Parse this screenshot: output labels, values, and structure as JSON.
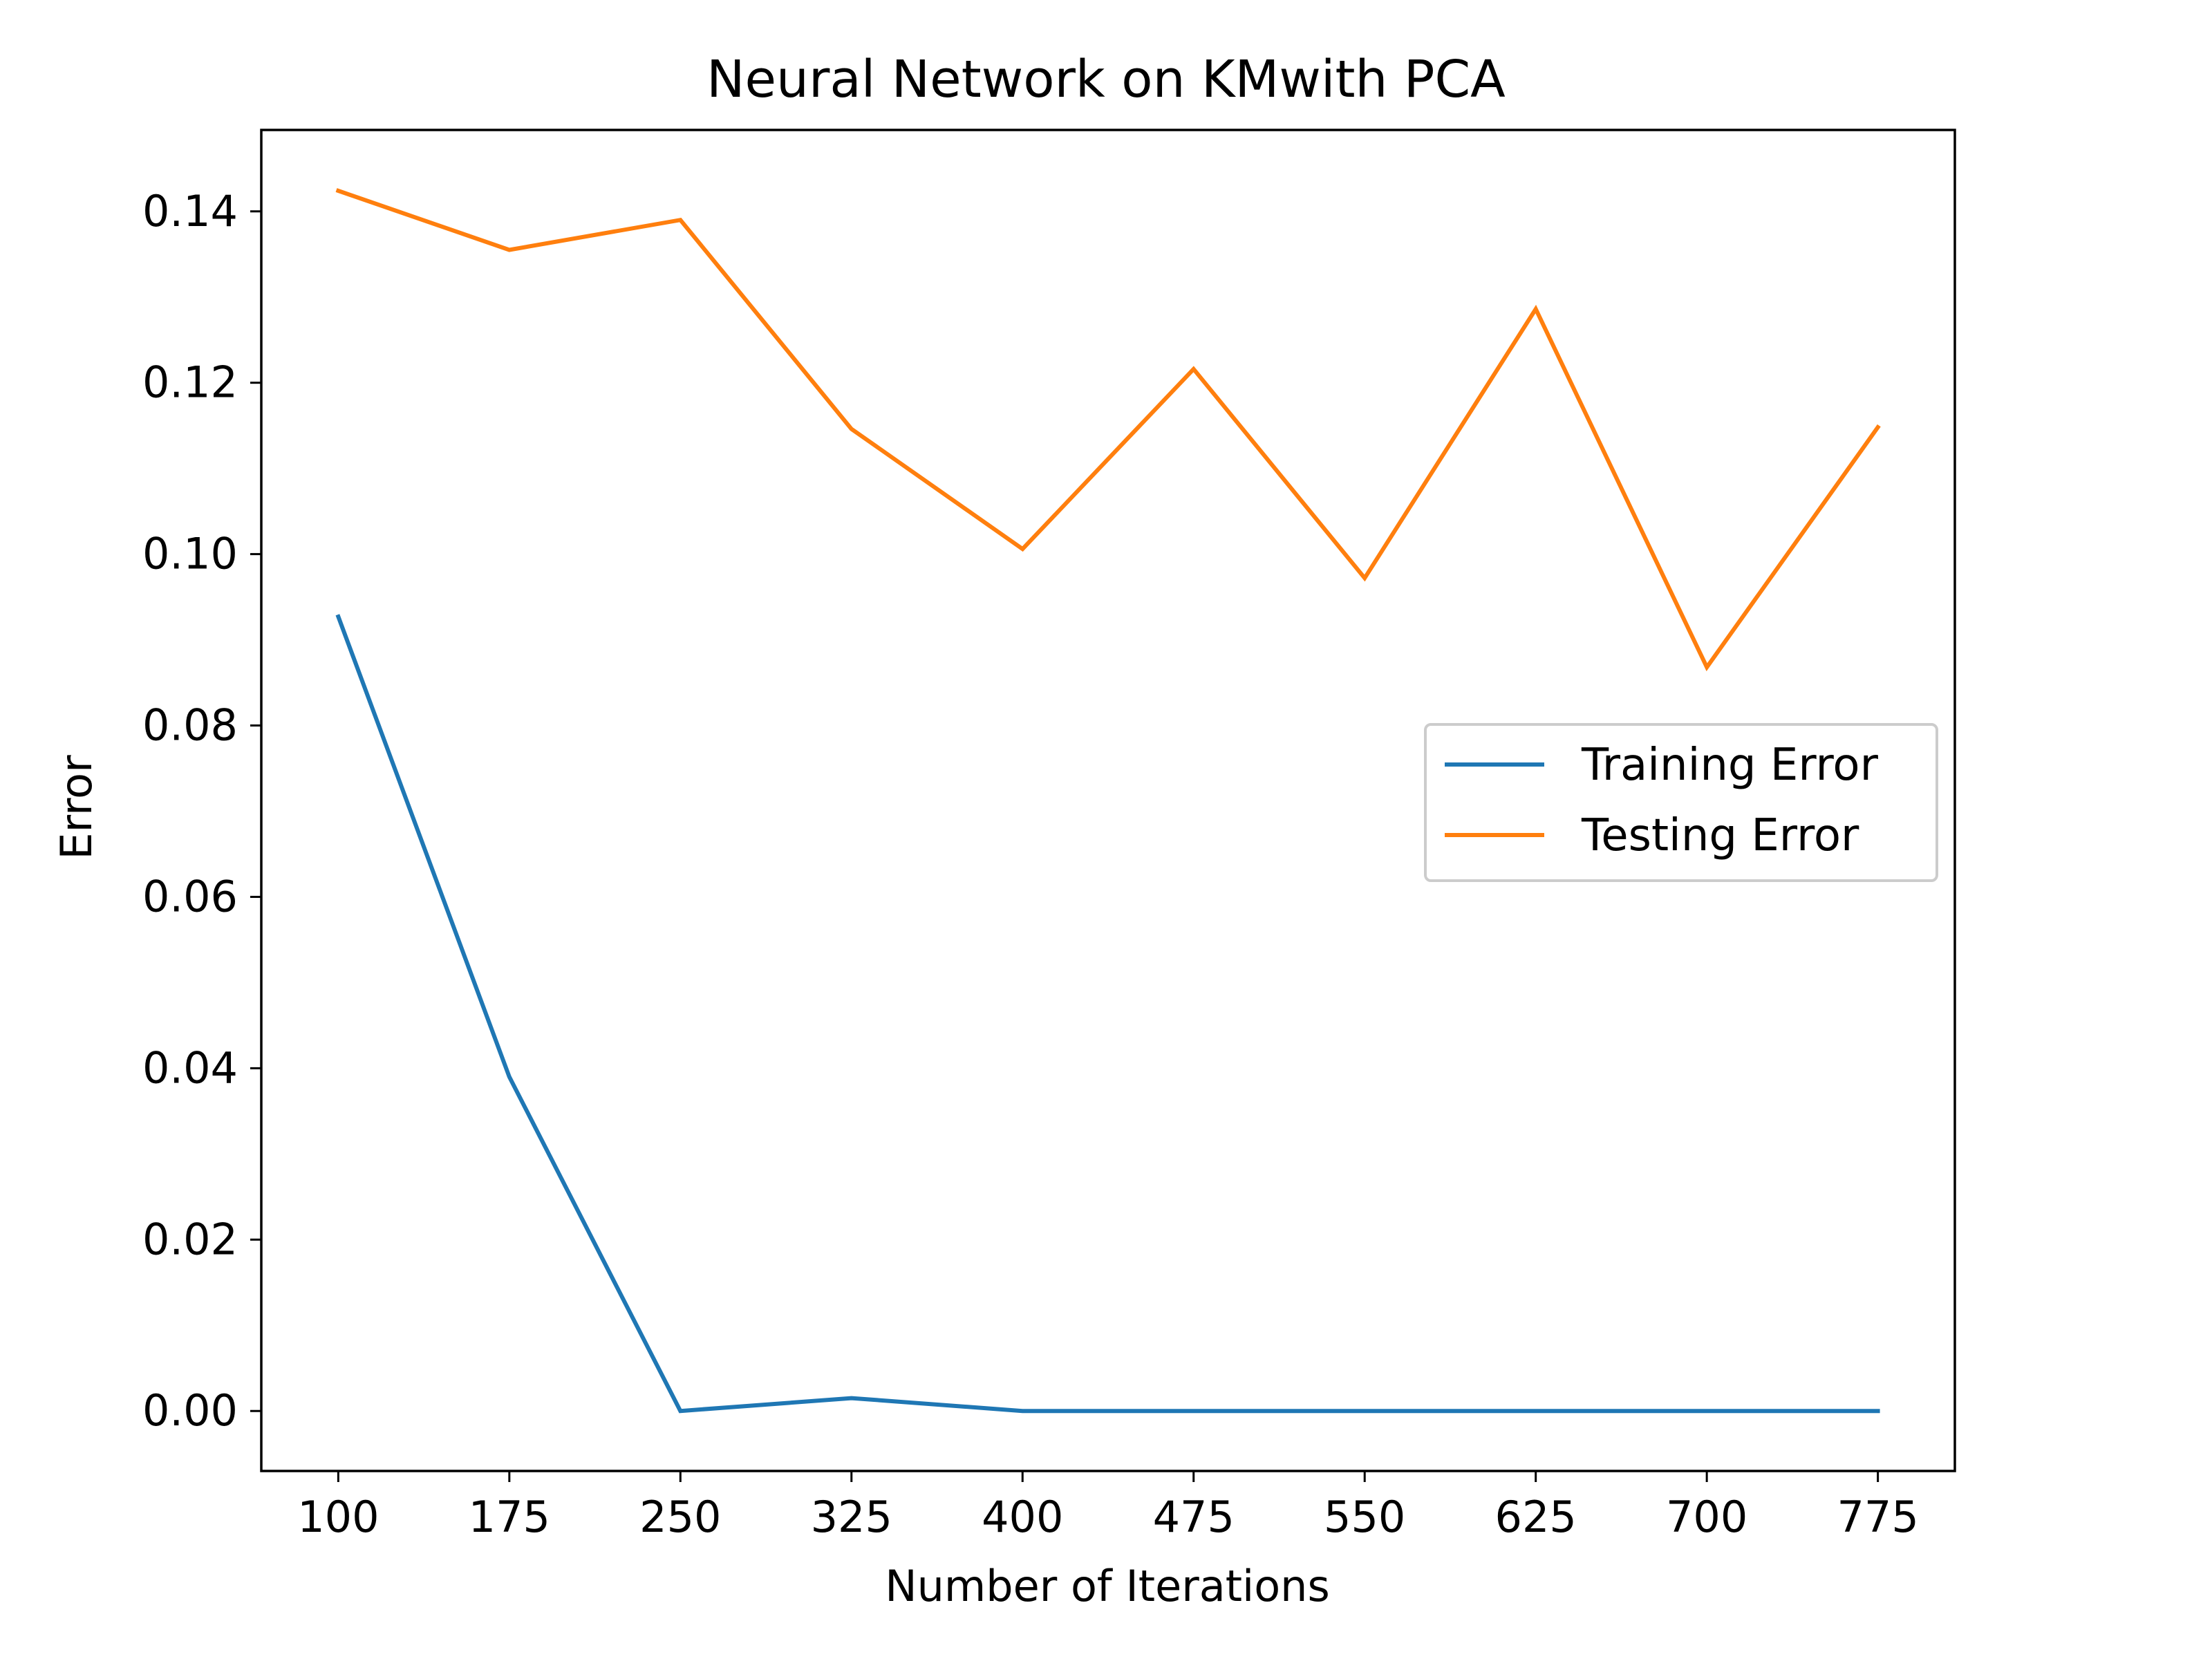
{
  "chart_data": {
    "type": "line",
    "title": "Neural Network on KMwith PCA",
    "xlabel": "Number of Iterations",
    "ylabel": "Error",
    "x": [
      100,
      175,
      250,
      325,
      400,
      475,
      550,
      625,
      700,
      775
    ],
    "x_ticks": [
      "100",
      "175",
      "250",
      "325",
      "400",
      "475",
      "550",
      "625",
      "700",
      "775"
    ],
    "y_ticks": [
      "0.00",
      "0.02",
      "0.04",
      "0.06",
      "0.08",
      "0.10",
      "0.12",
      "0.14"
    ],
    "y_tick_values": [
      0.0,
      0.02,
      0.04,
      0.06,
      0.08,
      0.1,
      0.12,
      0.14
    ],
    "xlim": [
      66.25,
      808.75
    ],
    "ylim": [
      -0.007,
      0.1495
    ],
    "grid": false,
    "legend_position": "center-right",
    "series": [
      {
        "name": "Training Error",
        "color": "#1f77b4",
        "values": [
          0.0927,
          0.039,
          0.0,
          0.0015,
          0.0,
          0.0,
          0.0,
          0.0,
          0.0,
          0.0
        ]
      },
      {
        "name": "Testing Error",
        "color": "#ff7f0e",
        "values": [
          0.1424,
          0.1355,
          0.139,
          0.1146,
          0.1006,
          0.1216,
          0.0972,
          0.1286,
          0.0868,
          0.1148
        ]
      }
    ]
  }
}
